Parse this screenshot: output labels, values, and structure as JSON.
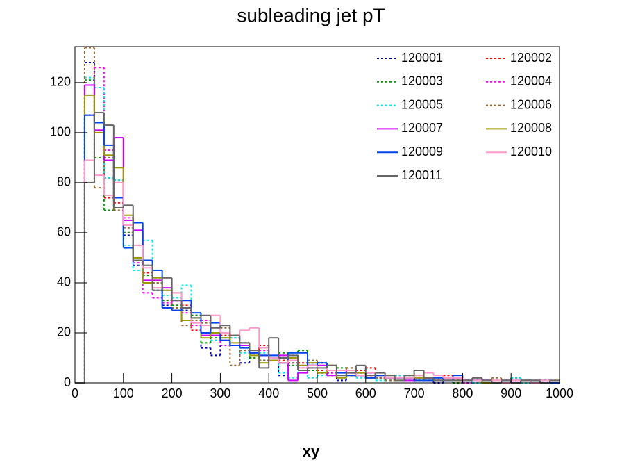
{
  "chart_data": {
    "type": "histogram",
    "title": "subleading jet pT",
    "x_label": "xy",
    "bins": [
      0,
      20,
      40,
      60,
      80,
      100,
      120,
      140,
      160,
      180,
      200,
      220,
      240,
      260,
      280,
      300,
      320,
      340,
      360,
      380,
      400,
      420,
      440,
      460,
      480,
      500,
      520,
      540,
      560,
      580,
      600,
      620,
      640,
      660,
      680,
      700,
      720,
      740,
      760,
      780,
      800,
      820,
      840,
      860,
      880,
      900,
      920,
      940,
      960,
      980,
      1000
    ],
    "xlim": [
      0,
      1000
    ],
    "xticks": [
      0,
      100,
      200,
      300,
      400,
      500,
      600,
      700,
      800,
      900,
      1000
    ],
    "ylim": [
      0,
      134.4
    ],
    "yticks": [
      0,
      20,
      40,
      60,
      80,
      100,
      120
    ],
    "legend": "top-right",
    "series": [
      {
        "name": "120001",
        "color": "#0000aa",
        "style": "dotted",
        "values": [
          0,
          128,
          104,
          82,
          81,
          59,
          47,
          49,
          37,
          31,
          33,
          29,
          27,
          14,
          11,
          17,
          18,
          8,
          12,
          9,
          10,
          3,
          11,
          6,
          8,
          4,
          4,
          1,
          3,
          4,
          2,
          3,
          1,
          2,
          2,
          1,
          1,
          0,
          2,
          1,
          0,
          1,
          1,
          0,
          0,
          2,
          1,
          0,
          1,
          0
        ]
      },
      {
        "name": "120002",
        "color": "#ff0000",
        "style": "dotted",
        "values": [
          0,
          107,
          100,
          74,
          72,
          60,
          50,
          44,
          40,
          33,
          31,
          31,
          21,
          20,
          17,
          19,
          15,
          16,
          10,
          15,
          10,
          9,
          9,
          8,
          7,
          5,
          7,
          5,
          3,
          5,
          6,
          2,
          2,
          3,
          2,
          1,
          2,
          1,
          3,
          1,
          1,
          2,
          1,
          1,
          0,
          2,
          1,
          1,
          1,
          0
        ]
      },
      {
        "name": "120003",
        "color": "#009900",
        "style": "dotted",
        "values": [
          0,
          121,
          90,
          69,
          80,
          60,
          49,
          43,
          38,
          33,
          31,
          25,
          27,
          16,
          18,
          18,
          15,
          13,
          10,
          9,
          10,
          12,
          7,
          13,
          5,
          4,
          5,
          6,
          6,
          3,
          4,
          2,
          1,
          2,
          1,
          3,
          1,
          1,
          2,
          0,
          1,
          1,
          1,
          0,
          1,
          1,
          0,
          1,
          1,
          0
        ]
      },
      {
        "name": "120004",
        "color": "#ff00ff",
        "style": "dotted",
        "values": [
          0,
          107,
          126,
          93,
          74,
          66,
          48,
          36,
          34,
          32,
          33,
          28,
          23,
          25,
          20,
          15,
          15,
          16,
          11,
          13,
          10,
          8,
          8,
          7,
          6,
          8,
          4,
          5,
          4,
          4,
          3,
          2,
          2,
          3,
          1,
          2,
          2,
          1,
          1,
          1,
          0,
          1,
          1,
          1,
          1,
          0,
          1,
          0,
          1,
          0
        ]
      },
      {
        "name": "120005",
        "color": "#00eeee",
        "style": "dotted",
        "values": [
          0,
          122,
          118,
          82,
          81,
          55,
          45,
          57,
          40,
          35,
          34,
          39,
          28,
          24,
          17,
          18,
          18,
          12,
          11,
          12,
          11,
          4,
          2,
          5,
          2,
          3,
          5,
          3,
          5,
          2,
          4,
          1,
          2,
          3,
          1,
          2,
          2,
          1,
          1,
          2,
          1,
          0,
          1,
          0,
          1,
          2,
          0,
          1,
          0,
          0
        ]
      },
      {
        "name": "120006",
        "color": "#996633",
        "style": "dotted",
        "values": [
          0,
          134,
          78,
          90,
          69,
          62,
          55,
          47,
          40,
          37,
          30,
          23,
          25,
          24,
          24,
          22,
          7,
          13,
          12,
          9,
          10,
          11,
          8,
          6,
          9,
          8,
          3,
          5,
          6,
          3,
          3,
          2,
          1,
          2,
          3,
          1,
          2,
          2,
          1,
          1,
          1,
          1,
          1,
          2,
          0,
          1,
          1,
          0,
          1,
          1
        ]
      },
      {
        "name": "120007",
        "color": "#cc00ff",
        "style": "solid",
        "values": [
          0,
          119,
          101,
          89,
          98,
          65,
          61,
          41,
          41,
          38,
          33,
          33,
          24,
          19,
          19,
          17,
          15,
          15,
          12,
          11,
          9,
          11,
          1,
          4,
          7,
          7,
          3,
          5,
          4,
          3,
          4,
          3,
          2,
          2,
          1,
          2,
          2,
          1,
          1,
          2,
          1,
          1,
          1,
          0,
          1,
          1,
          1,
          0,
          0,
          0
        ]
      },
      {
        "name": "120008",
        "color": "#999900",
        "style": "solid",
        "values": [
          0,
          115,
          100,
          91,
          86,
          67,
          50,
          40,
          42,
          37,
          36,
          25,
          26,
          18,
          20,
          18,
          16,
          16,
          11,
          8,
          9,
          8,
          10,
          7,
          8,
          4,
          7,
          2,
          3,
          4,
          2,
          3,
          3,
          1,
          2,
          2,
          1,
          1,
          2,
          1,
          1,
          1,
          0,
          1,
          1,
          0,
          1,
          0,
          1,
          0
        ]
      },
      {
        "name": "120009",
        "color": "#0044ee",
        "style": "solid",
        "values": [
          0,
          107,
          104,
          95,
          74,
          54,
          64,
          49,
          45,
          30,
          29,
          33,
          28,
          20,
          24,
          17,
          15,
          14,
          12,
          11,
          11,
          8,
          12,
          12,
          7,
          8,
          5,
          4,
          3,
          3,
          2,
          3,
          2,
          2,
          2,
          1,
          1,
          2,
          1,
          3,
          1,
          1,
          1,
          0,
          1,
          0,
          1,
          1,
          1,
          0
        ]
      },
      {
        "name": "120010",
        "color": "#ff99cc",
        "style": "solid",
        "values": [
          0,
          89,
          83,
          75,
          80,
          63,
          55,
          46,
          38,
          42,
          36,
          30,
          24,
          23,
          27,
          20,
          19,
          21,
          22,
          14,
          10,
          8,
          9,
          6,
          7,
          6,
          5,
          5,
          5,
          3,
          4,
          4,
          2,
          2,
          2,
          3,
          4,
          3,
          2,
          2,
          1,
          1,
          1,
          1,
          0,
          1,
          1,
          0,
          1,
          1
        ]
      },
      {
        "name": "120011",
        "color": "#666666",
        "style": "solid",
        "values": [
          0,
          80,
          108,
          103,
          70,
          71,
          49,
          47,
          37,
          42,
          33,
          30,
          26,
          27,
          22,
          23,
          19,
          16,
          13,
          6,
          18,
          10,
          11,
          5,
          6,
          6,
          7,
          3,
          4,
          7,
          3,
          4,
          3,
          1,
          3,
          5,
          2,
          1,
          1,
          1,
          1,
          2,
          1,
          0,
          1,
          0,
          1,
          1,
          0,
          1
        ]
      }
    ]
  }
}
